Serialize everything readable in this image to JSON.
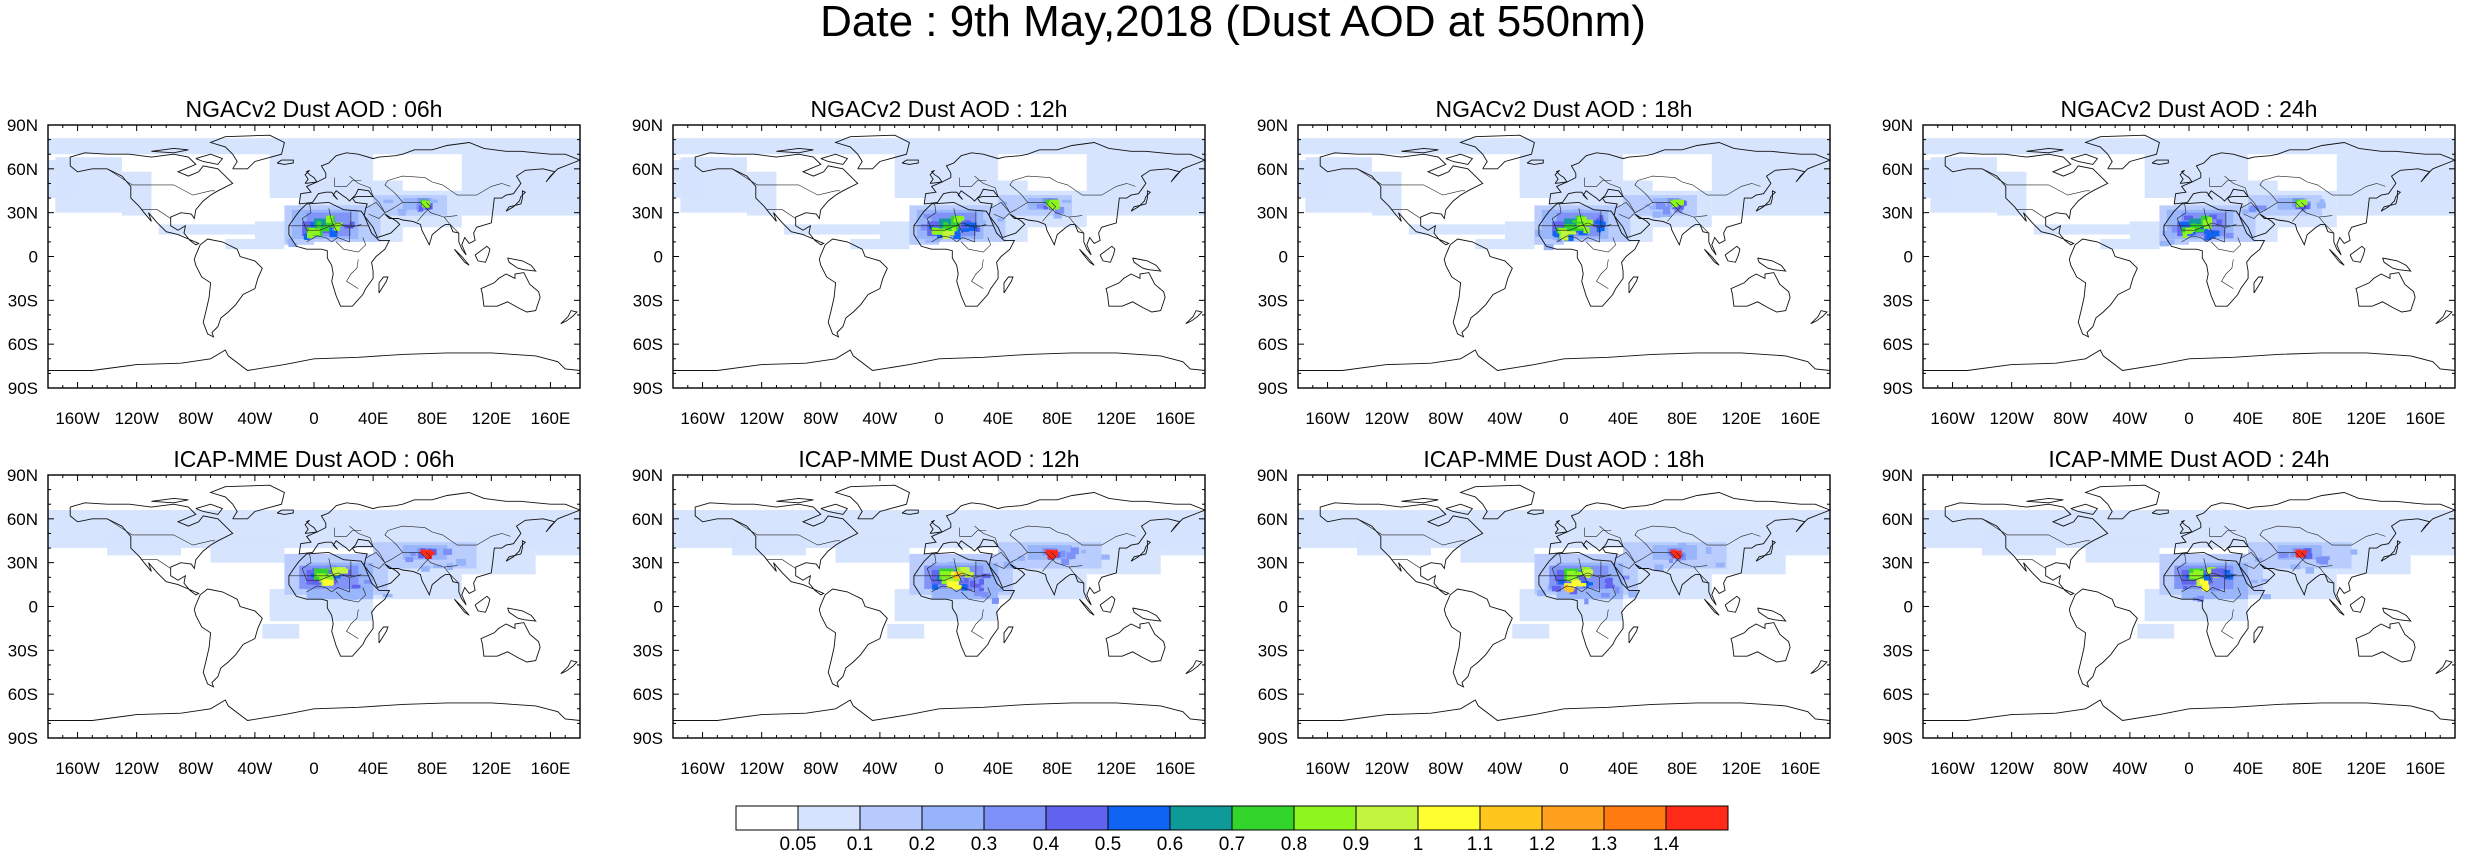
{
  "title": "Date : 9th May,2018 (Dust AOD at 550nm)",
  "panels": [
    {
      "title": "NGACv2 Dust AOD : 06h"
    },
    {
      "title": "NGACv2 Dust AOD : 12h"
    },
    {
      "title": "NGACv2 Dust AOD : 18h"
    },
    {
      "title": "NGACv2 Dust AOD : 24h"
    },
    {
      "title": "ICAP-MME Dust AOD : 06h"
    },
    {
      "title": "ICAP-MME Dust AOD : 12h"
    },
    {
      "title": "ICAP-MME Dust AOD : 18h"
    },
    {
      "title": "ICAP-MME Dust AOD : 24h"
    }
  ],
  "axes": {
    "lon_ticks": [
      "160W",
      "120W",
      "80W",
      "40W",
      "0",
      "40E",
      "80E",
      "120E",
      "160E"
    ],
    "lat_ticks": [
      "90N",
      "60N",
      "30N",
      "0",
      "30S",
      "60S",
      "90S"
    ]
  },
  "colorbar": {
    "colors": [
      "#ffffff",
      "#d5e3fe",
      "#b6cafd",
      "#97b4fb",
      "#7d91f8",
      "#6163ef",
      "#0f64f3",
      "#0f9a9a",
      "#33d42b",
      "#8ef51f",
      "#c3f43e",
      "#fffe2e",
      "#ffc61e",
      "#ffa01e",
      "#ff7a11",
      "#ff2b18"
    ],
    "labels": [
      "0.05",
      "0.1",
      "0.2",
      "0.3",
      "0.4",
      "0.5",
      "0.6",
      "0.7",
      "0.8",
      "0.9",
      "1",
      "1.1",
      "1.2",
      "1.3",
      "1.4"
    ]
  }
}
